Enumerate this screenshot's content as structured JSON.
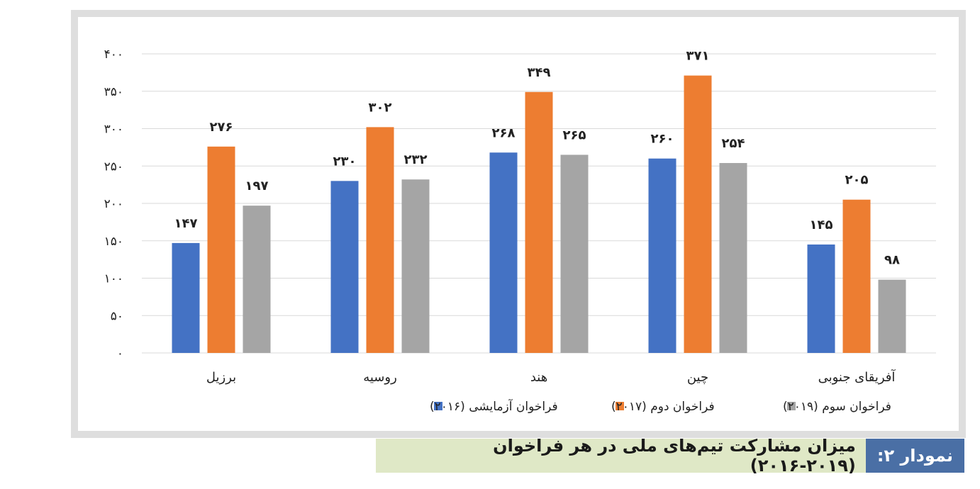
{
  "chart_data": {
    "type": "bar",
    "categories": [
      "برزیل",
      "روسیه",
      "هند",
      "چین",
      "آفریقای جنوبی"
    ],
    "series": [
      {
        "name": "فراخوان آزمایشی (۲۰۱۶)",
        "color": "#4472c4",
        "values": [
          147,
          230,
          268,
          260,
          145
        ],
        "labels": [
          "۱۴۷",
          "۲۳۰",
          "۲۶۸",
          "۲۶۰",
          "۱۴۵"
        ]
      },
      {
        "name": "فراخوان دوم (۲۰۱۷)",
        "color": "#ed7d31",
        "values": [
          276,
          302,
          349,
          371,
          205
        ],
        "labels": [
          "۲۷۶",
          "۳۰۲",
          "۳۴۹",
          "۳۷۱",
          "۲۰۵"
        ]
      },
      {
        "name": "فراخوان سوم (۲۰۱۹)",
        "color": "#a5a5a5",
        "values": [
          197,
          232,
          265,
          254,
          98
        ],
        "labels": [
          "۱۹۷",
          "۲۳۲",
          "۲۶۵",
          "۲۵۴",
          "۹۸"
        ]
      }
    ],
    "ylim": [
      0,
      400
    ],
    "yticks": [
      {
        "value": 0,
        "label": "۰"
      },
      {
        "value": 50,
        "label": "۵۰"
      },
      {
        "value": 100,
        "label": "۱۰۰"
      },
      {
        "value": 150,
        "label": "۱۵۰"
      },
      {
        "value": 200,
        "label": "۲۰۰"
      },
      {
        "value": 250,
        "label": "۲۵۰"
      },
      {
        "value": 300,
        "label": "۳۰۰"
      },
      {
        "value": 350,
        "label": "۳۵۰"
      },
      {
        "value": 400,
        "label": "۴۰۰"
      }
    ],
    "grid": true,
    "legend_position": "bottom"
  },
  "caption": {
    "label": "نمودار ۲:",
    "title": "میزان مشارکت تیم‌های ملی در هر فراخوان (۲۰۱۹-۲۰۱۶)"
  }
}
